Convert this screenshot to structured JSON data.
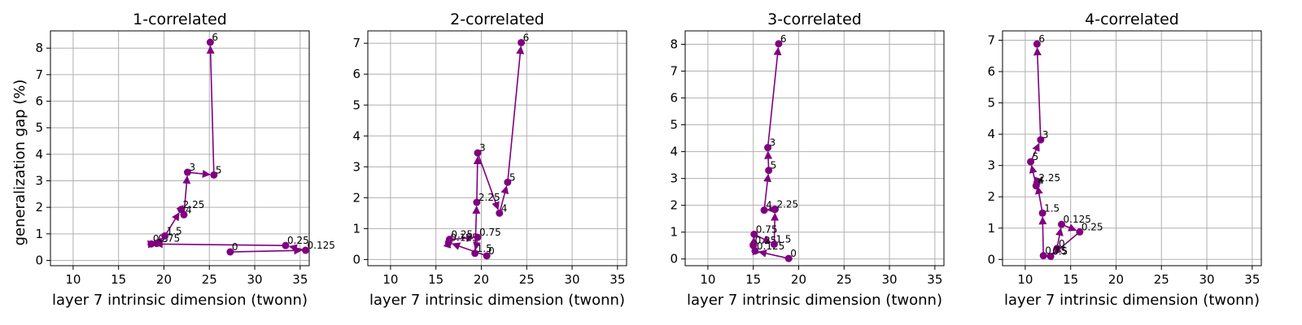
{
  "figure": {
    "ylabel": "generalization gap (%)"
  },
  "chart_data": [
    {
      "type": "line",
      "title": "1-correlated",
      "xlabel": "layer 7 intrinsic dimension (twonn)",
      "ylabel": "generalization gap (%)",
      "xlim": [
        7.5,
        36
      ],
      "ylim": [
        -0.2,
        8.65
      ],
      "xticks": [
        10,
        15,
        20,
        25,
        30,
        35
      ],
      "yticks": [
        0,
        1,
        2,
        3,
        4,
        5,
        6,
        7,
        8
      ],
      "grid": true,
      "color": "#800080",
      "points": [
        {
          "label": "0",
          "x": 27.3,
          "y": 0.32
        },
        {
          "label": "0.125",
          "x": 35.6,
          "y": 0.38
        },
        {
          "label": "0.25",
          "x": 33.4,
          "y": 0.56
        },
        {
          "label": "0.5",
          "x": 18.6,
          "y": 0.62
        },
        {
          "label": "0.75",
          "x": 19.2,
          "y": 0.64
        },
        {
          "label": "1.5",
          "x": 20.1,
          "y": 0.92
        },
        {
          "label": "2.25",
          "x": 21.9,
          "y": 1.92
        },
        {
          "label": "4",
          "x": 22.2,
          "y": 1.72
        },
        {
          "label": "3",
          "x": 22.6,
          "y": 3.32
        },
        {
          "label": "5",
          "x": 25.5,
          "y": 3.22
        },
        {
          "label": "6",
          "x": 25.1,
          "y": 8.22
        }
      ]
    },
    {
      "type": "line",
      "title": "2-correlated",
      "xlabel": "layer 7 intrinsic dimension (twonn)",
      "ylabel": "",
      "xlim": [
        7.5,
        36
      ],
      "ylim": [
        -0.2,
        7.4
      ],
      "xticks": [
        10,
        15,
        20,
        25,
        30,
        35
      ],
      "yticks": [
        0,
        1,
        2,
        3,
        4,
        5,
        6,
        7
      ],
      "grid": true,
      "color": "#800080",
      "points": [
        {
          "label": "0",
          "x": 20.6,
          "y": 0.12
        },
        {
          "label": "0.125",
          "x": 16.4,
          "y": 0.55
        },
        {
          "label": "0.25",
          "x": 16.5,
          "y": 0.65
        },
        {
          "label": "0.75",
          "x": 19.6,
          "y": 0.72
        },
        {
          "label": "1.5",
          "x": 19.3,
          "y": 0.2
        },
        {
          "label": "2.25",
          "x": 19.5,
          "y": 1.85
        },
        {
          "label": "3",
          "x": 19.6,
          "y": 3.45
        },
        {
          "label": "4",
          "x": 22.0,
          "y": 1.5
        },
        {
          "label": "5",
          "x": 22.9,
          "y": 2.5
        },
        {
          "label": "6",
          "x": 24.4,
          "y": 7.02
        }
      ]
    },
    {
      "type": "line",
      "title": "3-correlated",
      "xlabel": "layer 7 intrinsic dimension (twonn)",
      "ylabel": "",
      "xlim": [
        7.5,
        36
      ],
      "ylim": [
        -0.25,
        8.5
      ],
      "xticks": [
        10,
        15,
        20,
        25,
        30,
        35
      ],
      "yticks": [
        0,
        1,
        2,
        3,
        4,
        5,
        6,
        7,
        8
      ],
      "grid": true,
      "color": "#800080",
      "points": [
        {
          "label": "0",
          "x": 18.9,
          "y": 0.02
        },
        {
          "label": "0.125",
          "x": 15.2,
          "y": 0.3
        },
        {
          "label": "0.25",
          "x": 15.0,
          "y": 0.5
        },
        {
          "label": "0.75",
          "x": 15.1,
          "y": 0.92
        },
        {
          "label": "1.5",
          "x": 17.3,
          "y": 0.55
        },
        {
          "label": "2.25",
          "x": 17.4,
          "y": 1.85
        },
        {
          "label": "4",
          "x": 16.2,
          "y": 1.82
        },
        {
          "label": "5",
          "x": 16.7,
          "y": 3.3
        },
        {
          "label": "3",
          "x": 16.6,
          "y": 4.15
        },
        {
          "label": "6",
          "x": 17.8,
          "y": 8.02
        }
      ]
    },
    {
      "type": "line",
      "title": "4-correlated",
      "xlabel": "layer 7 intrinsic dimension (twonn)",
      "ylabel": "",
      "xlim": [
        7.5,
        36
      ],
      "ylim": [
        -0.2,
        7.3
      ],
      "xticks": [
        10,
        15,
        20,
        25,
        30,
        35
      ],
      "yticks": [
        0,
        1,
        2,
        3,
        4,
        5,
        6,
        7
      ],
      "grid": true,
      "color": "#800080",
      "points": [
        {
          "label": "0",
          "x": 13.5,
          "y": 0.35
        },
        {
          "label": "0.125",
          "x": 14.0,
          "y": 1.12
        },
        {
          "label": "0.25",
          "x": 16.0,
          "y": 0.88
        },
        {
          "label": "0.5",
          "x": 12.8,
          "y": 0.1
        },
        {
          "label": "0.75",
          "x": 12.0,
          "y": 0.12
        },
        {
          "label": "1.5",
          "x": 11.9,
          "y": 1.48
        },
        {
          "label": "2.25",
          "x": 11.3,
          "y": 2.45
        },
        {
          "label": "4",
          "x": 11.2,
          "y": 2.35
        },
        {
          "label": "5",
          "x": 10.6,
          "y": 3.12
        },
        {
          "label": "3",
          "x": 11.7,
          "y": 3.82
        },
        {
          "label": "6",
          "x": 11.3,
          "y": 6.88
        }
      ]
    }
  ]
}
